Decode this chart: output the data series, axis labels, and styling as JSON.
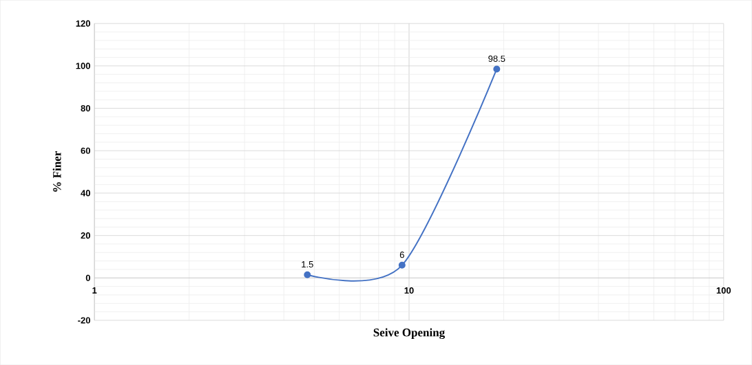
{
  "chart_data": {
    "type": "line",
    "xlabel": "Seive Opening",
    "ylabel": "% Finer",
    "x": [
      4.75,
      9.5,
      19
    ],
    "series": [
      {
        "color": "#4472c4",
        "values": [
          1.5,
          6,
          98.5
        ]
      }
    ],
    "log": "x",
    "xlim": [
      1,
      100
    ],
    "xticks": [
      1,
      10,
      100
    ],
    "ylim": [
      -20,
      120
    ],
    "yticks": [
      -20,
      0,
      20,
      40,
      60,
      80,
      100,
      120
    ],
    "grid": true,
    "marker": "circle",
    "line_style": "solid",
    "data_labels": true
  }
}
